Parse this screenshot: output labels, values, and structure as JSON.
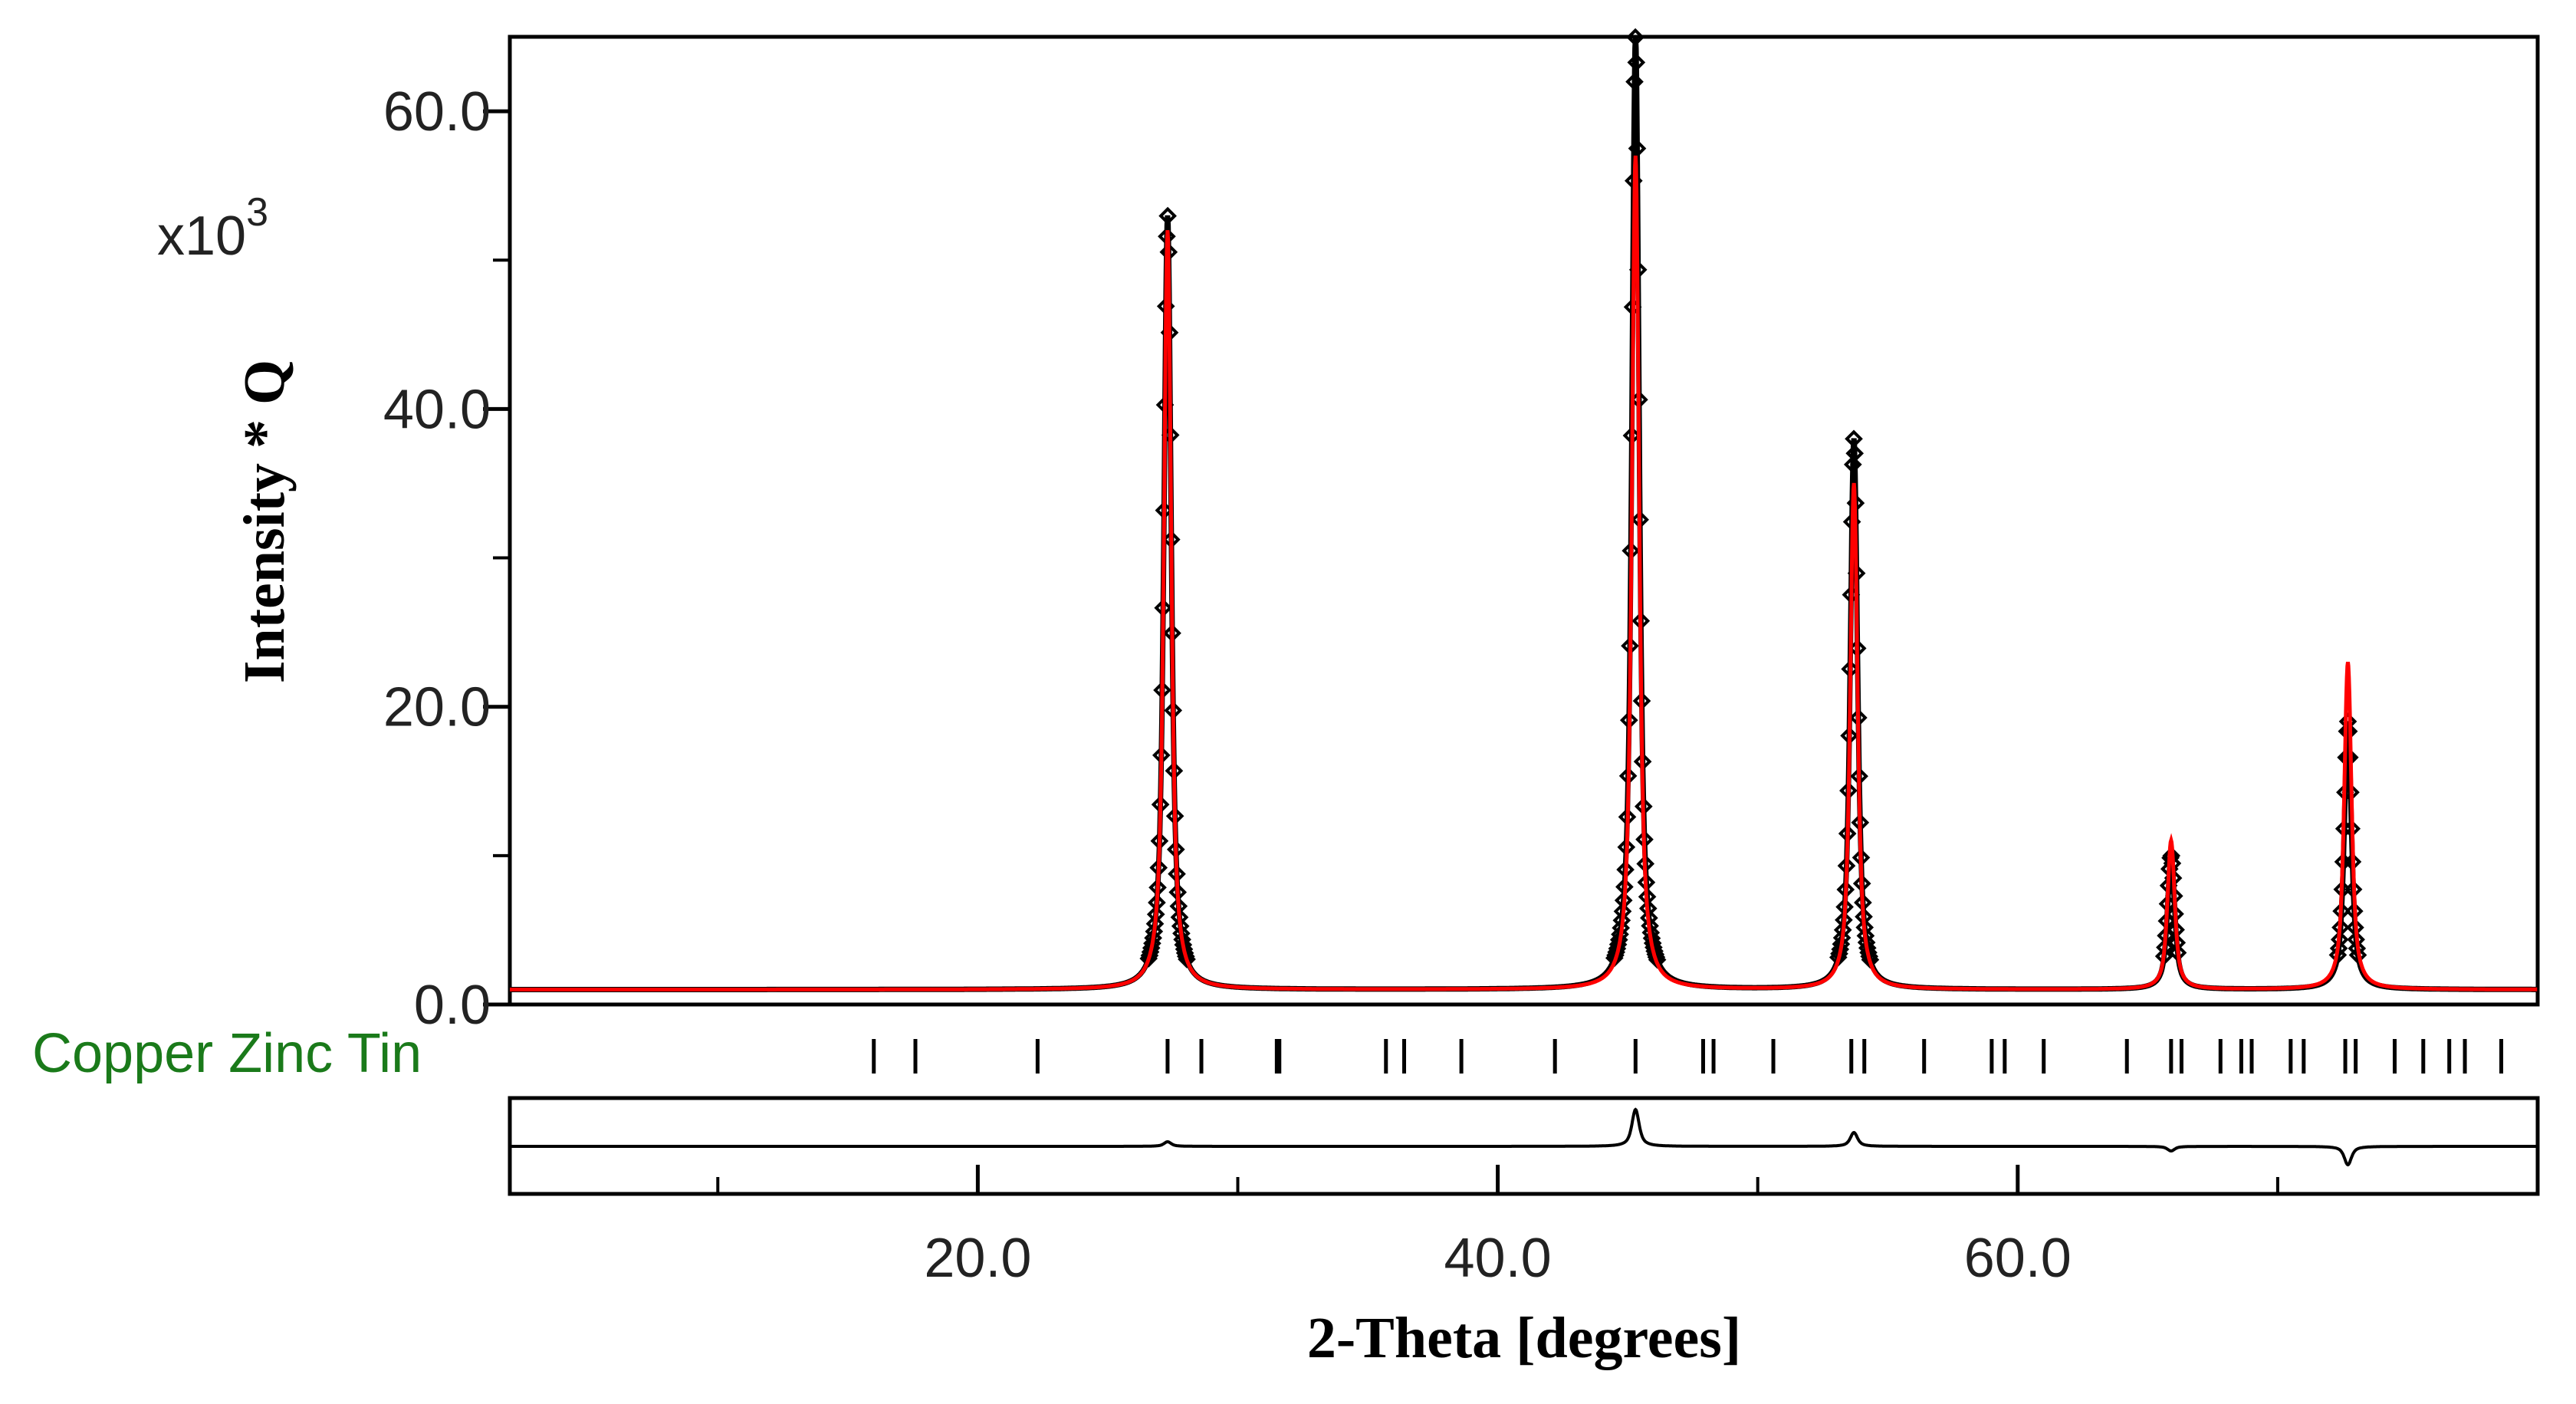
{
  "chart_data": {
    "type": "line",
    "xlabel": "2-Theta [degrees]",
    "ylabel": "Intensity * Q",
    "y_multiplier": "x10",
    "y_multiplier_exp": "3",
    "xlim": [
      2.0,
      80.0
    ],
    "ylim": [
      0,
      65.0
    ],
    "x_ticks": [
      {
        "value": 20,
        "label": "20.0"
      },
      {
        "value": 40,
        "label": "40.0"
      },
      {
        "value": 60,
        "label": "60.0"
      }
    ],
    "x_minor_ticks": [
      10,
      30,
      50,
      70
    ],
    "y_ticks": [
      {
        "value": 0,
        "label": "0.0"
      },
      {
        "value": 20,
        "label": "20.0"
      },
      {
        "value": 40,
        "label": "40.0"
      },
      {
        "value": 60,
        "label": "60.0"
      }
    ],
    "y_minor_ticks": [
      10,
      30,
      50
    ],
    "background_level": 1.0,
    "peaks": [
      {
        "x": 27.3,
        "observed": 52.0,
        "calculated": 51.0
      },
      {
        "x": 45.3,
        "observed": 64.0,
        "calculated": 56.0
      },
      {
        "x": 53.7,
        "observed": 37.0,
        "calculated": 34.0
      },
      {
        "x": 65.9,
        "observed": 9.0,
        "calculated": 10.0
      },
      {
        "x": 72.7,
        "observed": 18.0,
        "calculated": 22.0
      }
    ],
    "series": [
      {
        "role": "observed",
        "color": "#000000"
      },
      {
        "role": "calculated",
        "color": "#ff0000"
      },
      {
        "role": "difference",
        "color": "#000000"
      }
    ],
    "phase": {
      "name": "Copper Zinc Tin",
      "color": "#1a7a1a",
      "reflections": [
        16.0,
        17.6,
        22.3,
        27.3,
        28.6,
        31.5,
        31.6,
        35.7,
        36.4,
        38.6,
        42.2,
        45.3,
        47.9,
        48.3,
        50.6,
        53.6,
        54.1,
        56.4,
        59.0,
        59.5,
        61.0,
        64.2,
        65.9,
        66.3,
        67.8,
        68.6,
        69.0,
        70.5,
        71.0,
        72.6,
        73.0,
        74.5,
        75.6,
        76.6,
        77.2,
        78.6
      ]
    }
  }
}
